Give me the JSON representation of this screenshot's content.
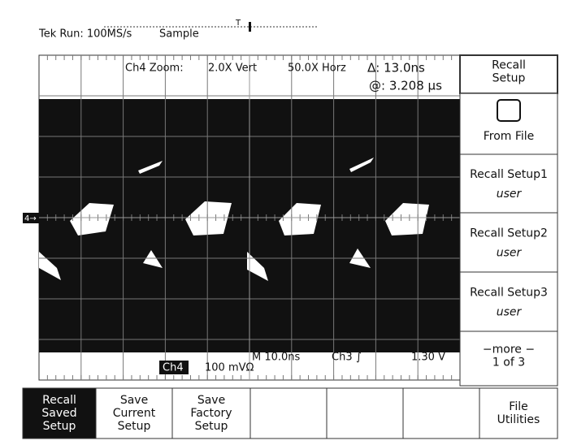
{
  "header": {
    "status": "Tek Run: 100MS/s",
    "mode": "Sample",
    "trigger_marker": "T"
  },
  "readouts": {
    "zoom": "Ch4 Zoom:",
    "vert": "2.0X Vert",
    "horz": "50.0X Horz",
    "delta": "Δ: 13.0ns",
    "at": "@: 3.208 μs",
    "channel_marker": "4→",
    "channel": "Ch4",
    "volts": "100 mVΩ",
    "timebase": "M 10.0ns",
    "trigger_source": "Ch3",
    "slope": "∫",
    "trigger_level": "1.30 V"
  },
  "side_menu": [
    {
      "lines": [
        "Recall",
        "Setup"
      ]
    },
    {
      "lines": [
        "From File"
      ]
    },
    {
      "lines": [
        "Recall Setup1",
        "user"
      ]
    },
    {
      "lines": [
        "Recall Setup2",
        "user"
      ]
    },
    {
      "lines": [
        "Recall Setup3",
        "user"
      ]
    },
    {
      "lines": [
        "−more −",
        "1 of 3"
      ]
    }
  ],
  "bottom_menu": [
    {
      "lines": [
        "Recall",
        "Saved",
        "Setup"
      ]
    },
    {
      "lines": [
        "Save",
        "Current",
        "Setup"
      ]
    },
    {
      "lines": [
        "Save",
        "Factory",
        "Setup"
      ]
    },
    {
      "lines": [
        "File",
        "Utilities"
      ]
    }
  ]
}
